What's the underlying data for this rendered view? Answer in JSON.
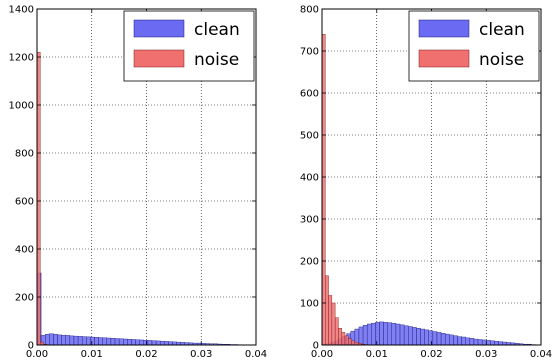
{
  "colors": {
    "clean_fill": "#6a6af2",
    "clean_edge": "#1a1a7a",
    "noise_fill": "#f07070",
    "noise_edge": "#7a1a1a",
    "background": "#ffffff",
    "grid": "#000000"
  },
  "chart_data": [
    {
      "type": "bar",
      "title": "",
      "xlabel": "",
      "ylabel": "",
      "xlim": [
        0,
        0.04
      ],
      "ylim": [
        0,
        1400
      ],
      "x_ticks": [
        0.0,
        0.01,
        0.02,
        0.03,
        0.04
      ],
      "x_tick_labels": [
        "0.00",
        "0.01",
        "0.02",
        "0.03",
        "0.04"
      ],
      "y_ticks": [
        0,
        200,
        400,
        600,
        800,
        1000,
        1200,
        1400
      ],
      "y_tick_labels": [
        "0",
        "200",
        "400",
        "600",
        "800",
        "1000",
        "1200",
        "1400"
      ],
      "grid": true,
      "legend_position": "top-right",
      "series": [
        {
          "name": "clean",
          "color": "#6a6af2",
          "bin_width": 0.00075,
          "bins": [
            [
              0.0,
              300
            ],
            [
              0.00075,
              40
            ],
            [
              0.0015,
              45
            ],
            [
              0.00225,
              47
            ],
            [
              0.003,
              45
            ],
            [
              0.00375,
              42
            ],
            [
              0.0045,
              41
            ],
            [
              0.00525,
              40
            ],
            [
              0.006,
              38
            ],
            [
              0.00675,
              37
            ],
            [
              0.0075,
              36
            ],
            [
              0.00825,
              35
            ],
            [
              0.009,
              34
            ],
            [
              0.00975,
              33
            ],
            [
              0.0105,
              32
            ],
            [
              0.01125,
              31
            ],
            [
              0.012,
              30
            ],
            [
              0.01275,
              29
            ],
            [
              0.0135,
              28
            ],
            [
              0.01425,
              27
            ],
            [
              0.015,
              26
            ],
            [
              0.01575,
              25
            ],
            [
              0.0165,
              24
            ],
            [
              0.01725,
              23
            ],
            [
              0.018,
              22
            ],
            [
              0.01875,
              21
            ],
            [
              0.0195,
              20
            ],
            [
              0.02025,
              19
            ],
            [
              0.021,
              18
            ],
            [
              0.02175,
              17
            ],
            [
              0.0225,
              16
            ],
            [
              0.02325,
              15
            ],
            [
              0.024,
              14
            ],
            [
              0.02475,
              13
            ],
            [
              0.0255,
              12
            ],
            [
              0.02625,
              11
            ],
            [
              0.027,
              10
            ],
            [
              0.02775,
              9
            ],
            [
              0.0285,
              8
            ],
            [
              0.02925,
              8
            ],
            [
              0.03,
              7
            ],
            [
              0.03075,
              6
            ],
            [
              0.0315,
              5
            ],
            [
              0.03225,
              5
            ],
            [
              0.033,
              4
            ],
            [
              0.03375,
              3
            ],
            [
              0.0345,
              3
            ],
            [
              0.03525,
              2
            ],
            [
              0.036,
              2
            ],
            [
              0.03675,
              1
            ],
            [
              0.0375,
              1
            ],
            [
              0.03825,
              1
            ]
          ]
        },
        {
          "name": "noise",
          "color": "#f07070",
          "bin_width": 0.0006,
          "bins": [
            [
              0.0,
              1220
            ],
            [
              0.0006,
              12
            ],
            [
              0.0012,
              3
            ],
            [
              0.0018,
              1
            ]
          ]
        }
      ]
    },
    {
      "type": "bar",
      "title": "",
      "xlabel": "",
      "ylabel": "",
      "xlim": [
        0,
        0.04
      ],
      "ylim": [
        0,
        800
      ],
      "x_ticks": [
        0.0,
        0.01,
        0.02,
        0.03,
        0.04
      ],
      "x_tick_labels": [
        "0.00",
        "0.01",
        "0.02",
        "0.03",
        "0.04"
      ],
      "y_ticks": [
        0,
        100,
        200,
        300,
        400,
        500,
        600,
        700,
        800
      ],
      "y_tick_labels": [
        "0",
        "100",
        "200",
        "300",
        "400",
        "500",
        "600",
        "700",
        "800"
      ],
      "grid": true,
      "legend_position": "top-right",
      "series": [
        {
          "name": "clean",
          "color": "#6a6af2",
          "bin_width": 0.00075,
          "bins": [
            [
              0.0,
              2
            ],
            [
              0.00075,
              3
            ],
            [
              0.0015,
              6
            ],
            [
              0.00225,
              10
            ],
            [
              0.003,
              15
            ],
            [
              0.00375,
              21
            ],
            [
              0.0045,
              27
            ],
            [
              0.00525,
              33
            ],
            [
              0.006,
              38
            ],
            [
              0.00675,
              43
            ],
            [
              0.0075,
              47
            ],
            [
              0.00825,
              50
            ],
            [
              0.009,
              52
            ],
            [
              0.00975,
              54
            ],
            [
              0.0105,
              55
            ],
            [
              0.01125,
              54
            ],
            [
              0.012,
              53
            ],
            [
              0.01275,
              52
            ],
            [
              0.0135,
              50
            ],
            [
              0.01425,
              48
            ],
            [
              0.015,
              46
            ],
            [
              0.01575,
              44
            ],
            [
              0.0165,
              42
            ],
            [
              0.01725,
              40
            ],
            [
              0.018,
              38
            ],
            [
              0.01875,
              36
            ],
            [
              0.0195,
              34
            ],
            [
              0.02025,
              32
            ],
            [
              0.021,
              30
            ],
            [
              0.02175,
              28
            ],
            [
              0.0225,
              26
            ],
            [
              0.02325,
              24
            ],
            [
              0.024,
              22
            ],
            [
              0.02475,
              20
            ],
            [
              0.0255,
              19
            ],
            [
              0.02625,
              17
            ],
            [
              0.027,
              16
            ],
            [
              0.02775,
              14
            ],
            [
              0.0285,
              13
            ],
            [
              0.02925,
              12
            ],
            [
              0.03,
              11
            ],
            [
              0.03075,
              10
            ],
            [
              0.0315,
              9
            ],
            [
              0.03225,
              8
            ],
            [
              0.033,
              7
            ],
            [
              0.03375,
              6
            ],
            [
              0.0345,
              5
            ],
            [
              0.03525,
              4
            ],
            [
              0.036,
              3
            ],
            [
              0.03675,
              2
            ],
            [
              0.0375,
              2
            ],
            [
              0.03825,
              1
            ]
          ]
        },
        {
          "name": "noise",
          "color": "#f07070",
          "bin_width": 0.0006,
          "bins": [
            [
              0.0,
              740
            ],
            [
              0.0006,
              165
            ],
            [
              0.0012,
              118
            ],
            [
              0.0018,
              100
            ],
            [
              0.0024,
              65
            ],
            [
              0.003,
              40
            ],
            [
              0.0036,
              30
            ],
            [
              0.0042,
              22
            ],
            [
              0.0048,
              15
            ],
            [
              0.0054,
              10
            ],
            [
              0.006,
              6
            ],
            [
              0.0066,
              4
            ],
            [
              0.0072,
              2
            ],
            [
              0.0078,
              1
            ]
          ]
        }
      ]
    }
  ]
}
